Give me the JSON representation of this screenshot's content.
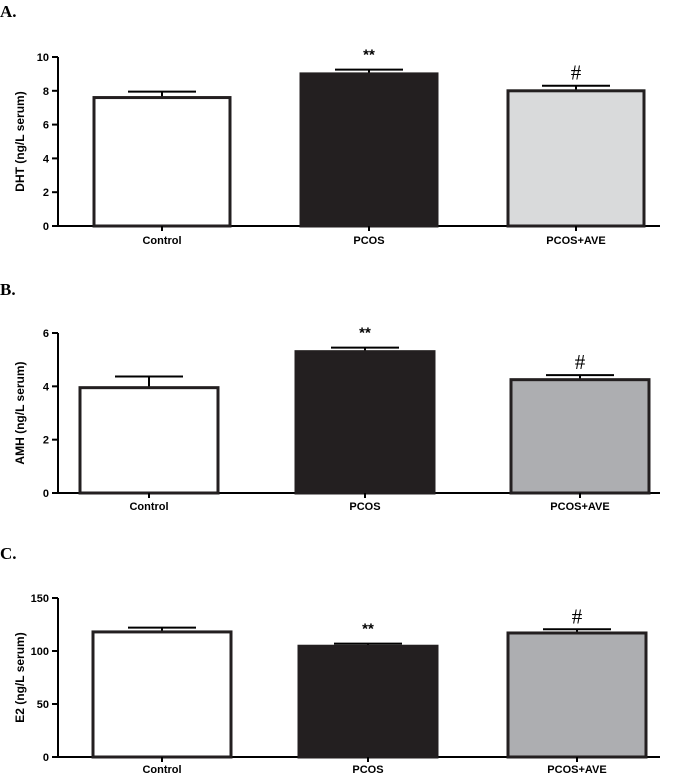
{
  "chart_data": [
    {
      "panel": "A.",
      "type": "bar",
      "categories": [
        "Control",
        "PCOS",
        "PCOS+AVE"
      ],
      "values": [
        7.6,
        9.0,
        8.0
      ],
      "errors": [
        0.35,
        0.25,
        0.3
      ],
      "colors": [
        "#ffffff",
        "#231f20",
        "#d9dadb"
      ],
      "annotations": [
        "",
        "**",
        "#"
      ],
      "ylabel": "DHT (ng/L serum)",
      "xlabel": "",
      "ylim": [
        0,
        10
      ],
      "yticks": [
        "0",
        "2",
        "4",
        "6",
        "8",
        "10"
      ]
    },
    {
      "panel": "B.",
      "type": "bar",
      "categories": [
        "Control",
        "PCOS",
        "PCOS+AVE"
      ],
      "values": [
        3.95,
        5.3,
        4.25
      ],
      "errors": [
        0.42,
        0.15,
        0.17
      ],
      "colors": [
        "#ffffff",
        "#231f20",
        "#adaeb1"
      ],
      "annotations": [
        "",
        "**",
        "#"
      ],
      "ylabel": "AMH (ng/L serum)",
      "xlabel": "",
      "ylim": [
        0,
        6
      ],
      "yticks": [
        "0",
        "2",
        "4",
        "6"
      ]
    },
    {
      "panel": "C.",
      "type": "bar",
      "categories": [
        "Control",
        "PCOS",
        "PCOS+AVE"
      ],
      "values": [
        118,
        104.5,
        117
      ],
      "errors": [
        4,
        2.5,
        3.5
      ],
      "colors": [
        "#ffffff",
        "#231f20",
        "#adaeb1"
      ],
      "annotations": [
        "",
        "**",
        "#"
      ],
      "ylabel": "E2 (ng/L serum)",
      "xlabel": "",
      "ylim": [
        0,
        150
      ],
      "yticks": [
        "0",
        "50",
        "100",
        "150"
      ]
    }
  ]
}
